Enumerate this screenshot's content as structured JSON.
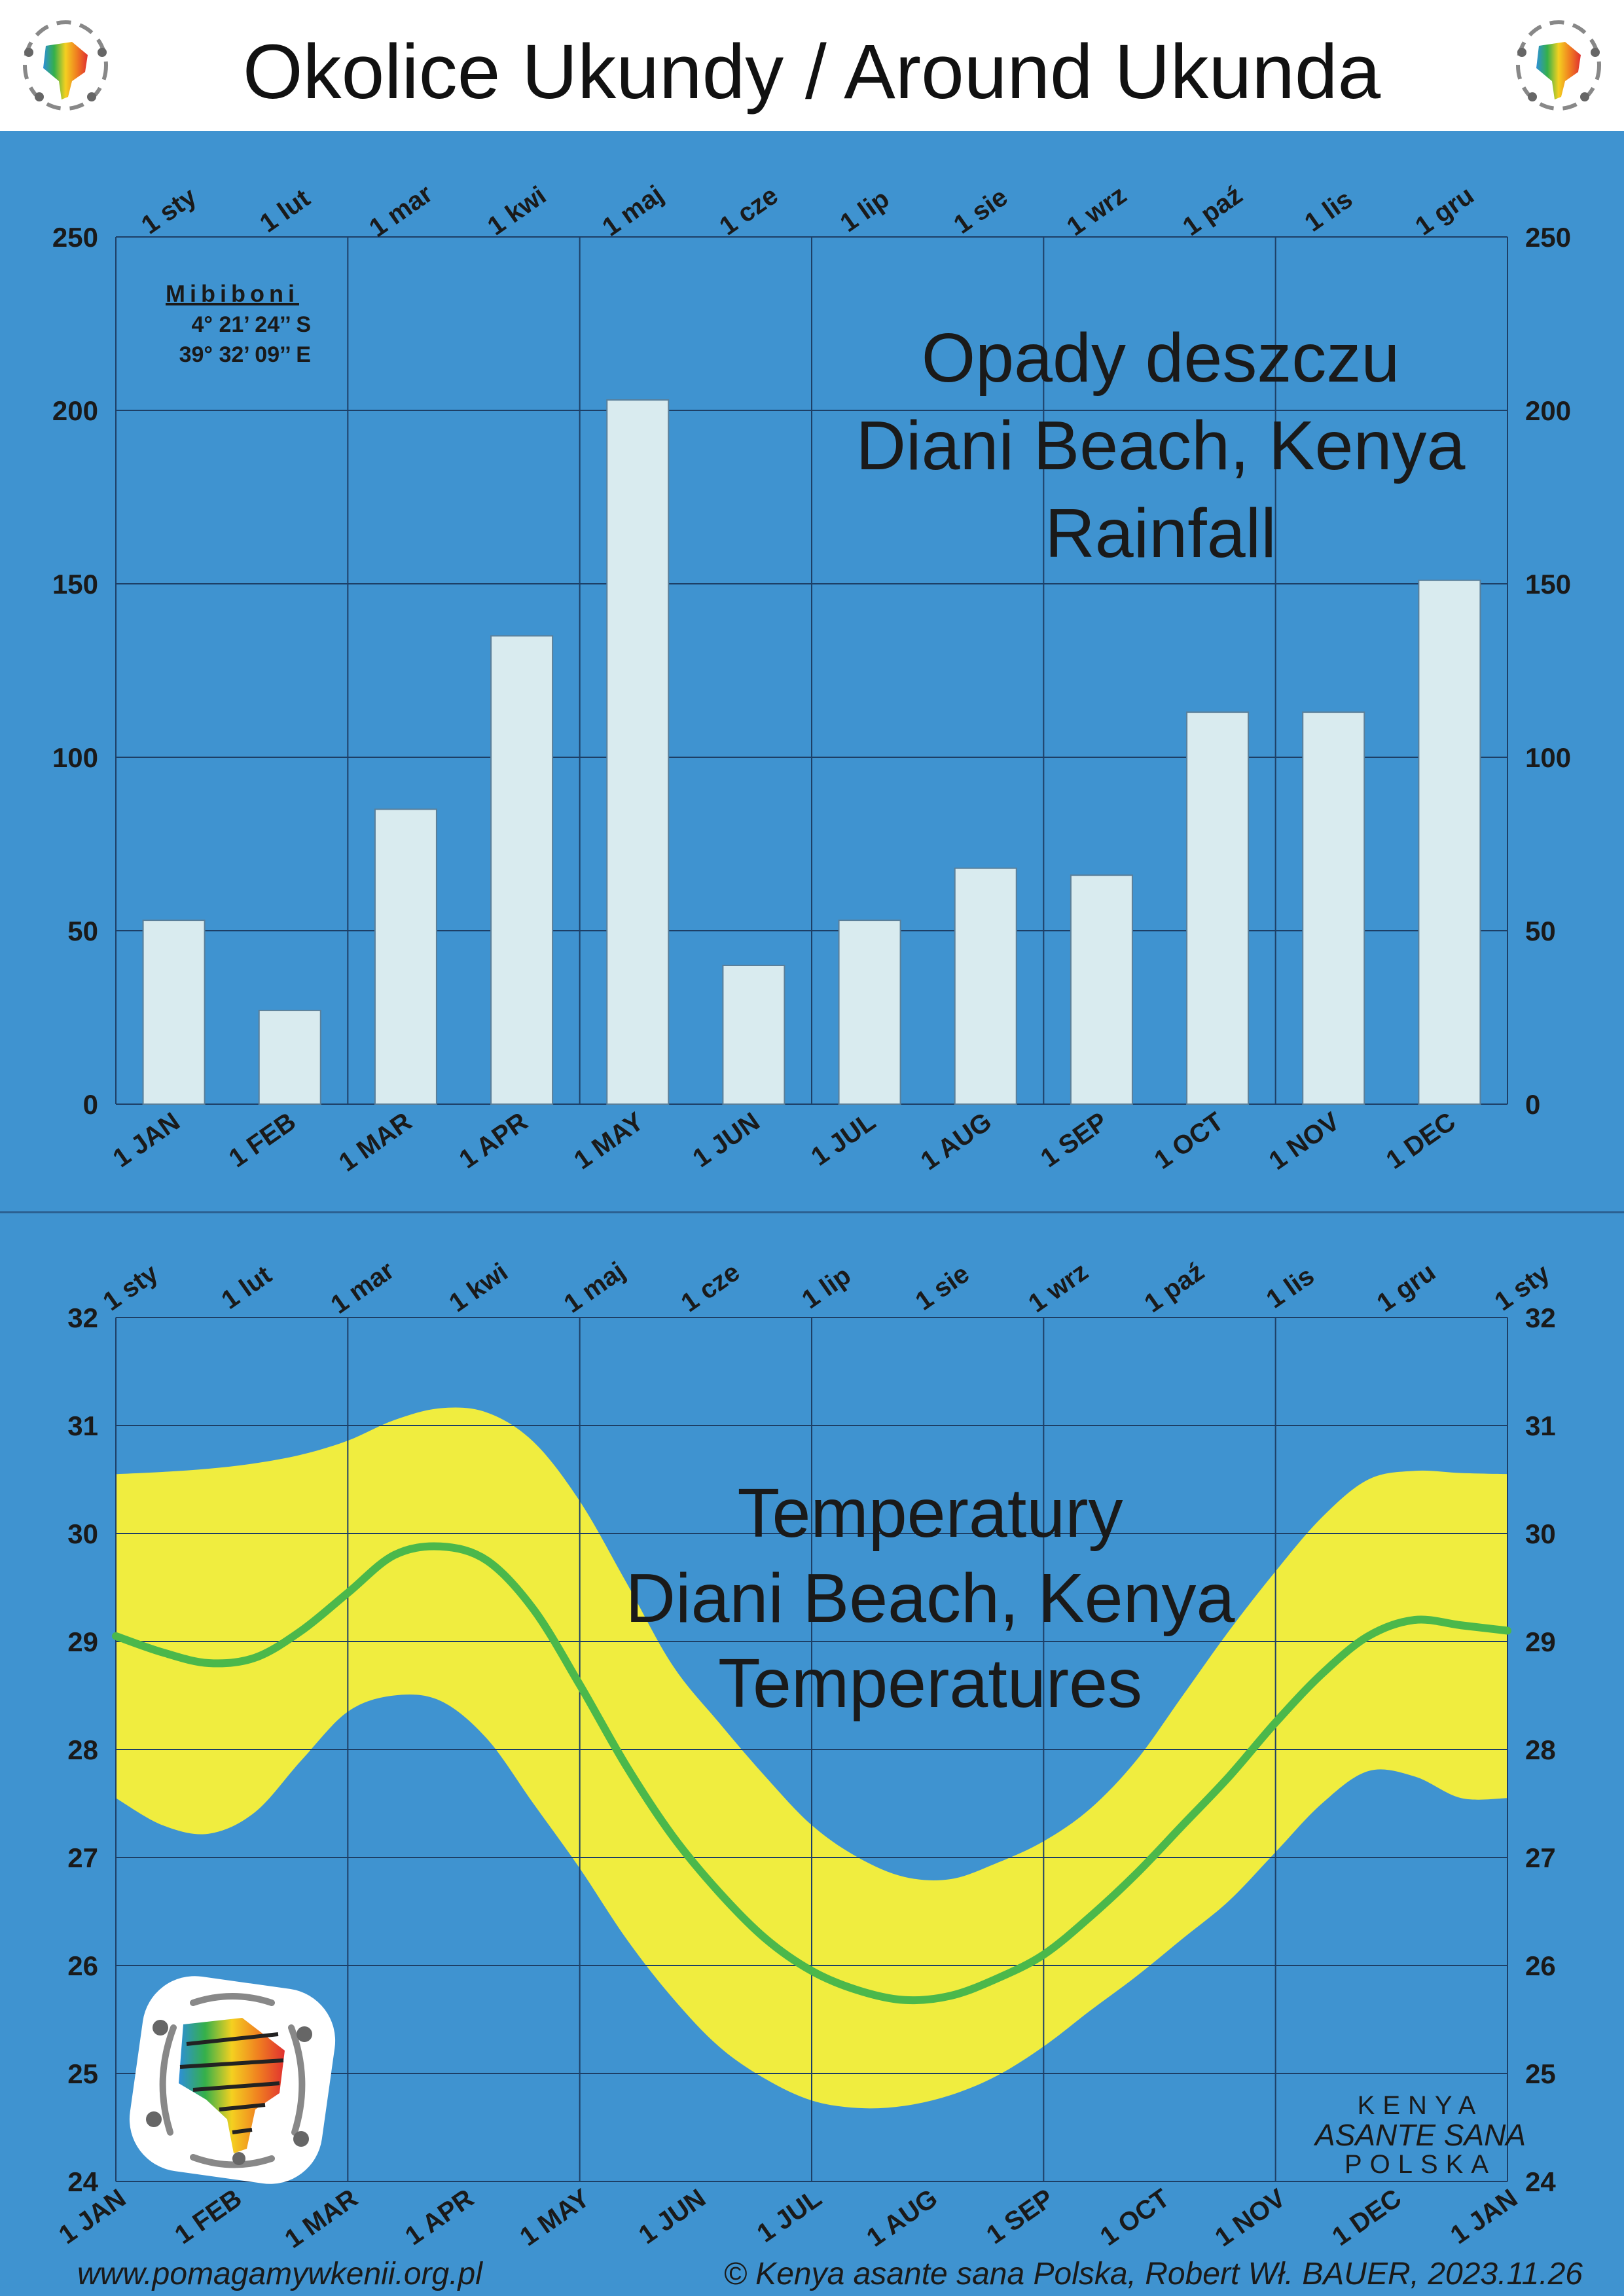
{
  "header": {
    "title": "Okolice Ukundy / Around Ukunda"
  },
  "footer": {
    "website": "www.pomagamywkenii.org.pl",
    "copyright": "© Kenya asante sana Polska, Robert Wł. BAUER, 2023.11.26"
  },
  "brand": {
    "line1": "KENYA",
    "line2": "ASANTE SANA",
    "line3": "POLSKA"
  },
  "colors": {
    "background": "#3f93d0",
    "bar": "#d9ebef",
    "band": "#f0ed3f",
    "line": "#4bb84b",
    "grid": "#1d3f66",
    "text": "#1a1a1a"
  },
  "chart_data": [
    {
      "type": "bar",
      "title": "Opady deszczu",
      "subtitle": "Diani Beach, Kenya",
      "title_en": "Rainfall",
      "station": {
        "name": "Mibiboni",
        "lat": "4° 21’ 24’’ S",
        "lon": "39° 32’ 09’’ E"
      },
      "categories": [
        "1 JAN",
        "1 FEB",
        "1 MAR",
        "1 APR",
        "1 MAY",
        "1 JUN",
        "1 JUL",
        "1 AUG",
        "1 SEP",
        "1 OCT",
        "1 NOV",
        "1 DEC"
      ],
      "categories_pl": [
        "1 sty",
        "1 lut",
        "1 mar",
        "1 kwi",
        "1 maj",
        "1 cze",
        "1 lip",
        "1 sie",
        "1 wrz",
        "1 paź",
        "1 lis",
        "1 gru"
      ],
      "values": [
        53,
        27,
        85,
        135,
        203,
        40,
        53,
        68,
        66,
        113,
        113,
        151
      ],
      "ylim": [
        0,
        250
      ],
      "yticks": [
        0,
        50,
        100,
        150,
        200,
        250
      ],
      "grid": true
    },
    {
      "type": "area",
      "title": "Temperatury",
      "subtitle": "Diani Beach, Kenya",
      "title_en": "Temperatures",
      "categories": [
        "1 JAN",
        "1 FEB",
        "1 MAR",
        "1 APR",
        "1 MAY",
        "1 JUN",
        "1 JUL",
        "1 AUG",
        "1 SEP",
        "1 OCT",
        "1 NOV",
        "1 DEC",
        "1 JAN"
      ],
      "categories_pl": [
        "1 sty",
        "1 lut",
        "1 mar",
        "1 kwi",
        "1 maj",
        "1 cze",
        "1 lip",
        "1 sie",
        "1 wrz",
        "1 paź",
        "1 lis",
        "1 gru",
        "1 sty"
      ],
      "x": [
        0,
        0.4,
        0.8,
        1.2,
        1.6,
        2.0,
        2.4,
        2.8,
        3.2,
        3.6,
        4.0,
        4.4,
        4.8,
        5.2,
        5.6,
        6.0,
        6.4,
        6.8,
        7.2,
        7.6,
        8.0,
        8.4,
        8.8,
        9.2,
        9.6,
        10.0,
        10.4,
        10.8,
        11.2,
        11.6,
        12.0
      ],
      "series": [
        {
          "values": [
            30.55,
            30.57,
            30.6,
            30.65,
            30.73,
            30.86,
            31.05,
            31.16,
            31.12,
            30.85,
            30.3,
            29.55,
            28.78,
            28.25,
            27.75,
            27.3,
            27.0,
            26.82,
            26.8,
            26.95,
            27.15,
            27.45,
            27.9,
            28.5,
            29.1,
            29.65,
            30.15,
            30.5,
            30.58,
            30.56,
            30.55
          ]
        },
        {
          "values": [
            29.05,
            28.9,
            28.8,
            28.85,
            29.1,
            29.45,
            29.8,
            29.88,
            29.75,
            29.3,
            28.6,
            27.85,
            27.2,
            26.68,
            26.25,
            25.95,
            25.77,
            25.68,
            25.72,
            25.88,
            26.1,
            26.45,
            26.85,
            27.3,
            27.75,
            28.25,
            28.7,
            29.05,
            29.2,
            29.15,
            29.1
          ]
        },
        {
          "values": [
            27.55,
            27.3,
            27.22,
            27.42,
            27.9,
            28.35,
            28.5,
            28.45,
            28.1,
            27.5,
            26.9,
            26.25,
            25.7,
            25.25,
            24.95,
            24.75,
            24.68,
            24.7,
            24.8,
            24.98,
            25.25,
            25.58,
            25.9,
            26.25,
            26.6,
            27.05,
            27.5,
            27.8,
            27.75,
            27.55,
            27.55
          ]
        }
      ],
      "ylim": [
        24,
        32
      ],
      "yticks": [
        24,
        25,
        26,
        27,
        28,
        29,
        30,
        31,
        32
      ],
      "grid": true
    }
  ]
}
